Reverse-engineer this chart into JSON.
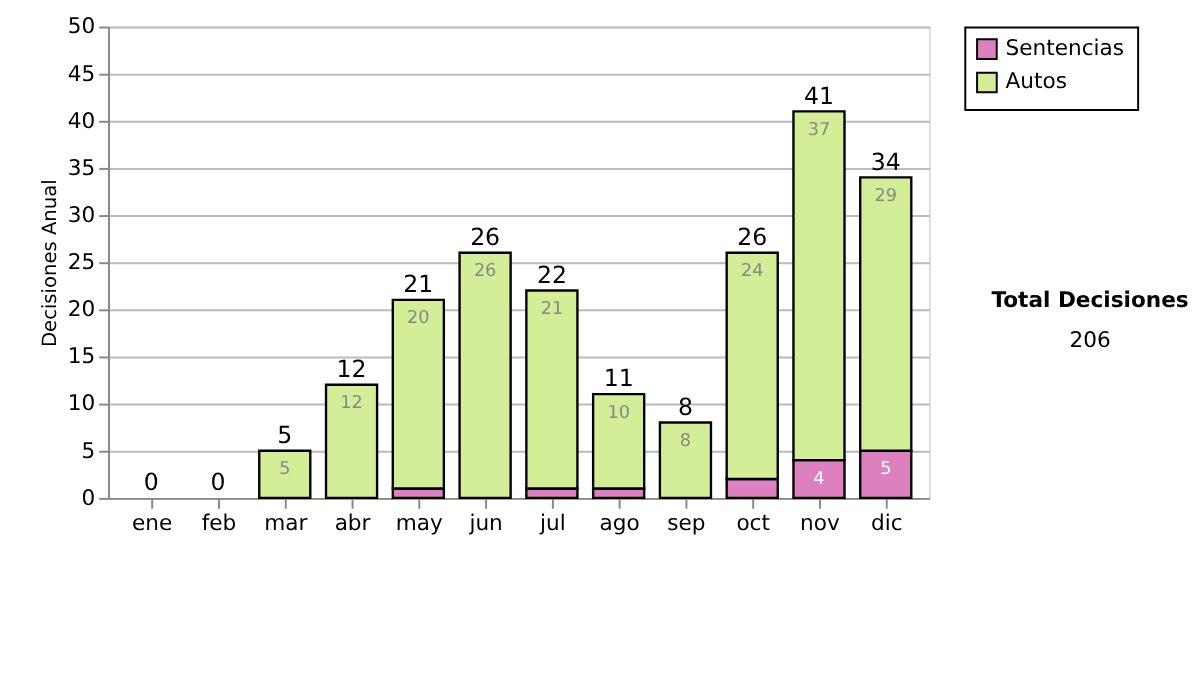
{
  "chart_data": {
    "type": "bar",
    "stacked": true,
    "ylabel": "Decisiones Anual",
    "categories": [
      "ene",
      "feb",
      "mar",
      "abr",
      "may",
      "jun",
      "jul",
      "ago",
      "sep",
      "oct",
      "nov",
      "dic"
    ],
    "series": [
      {
        "name": "Sentencias",
        "color": "#dd80c0",
        "values": [
          0,
          0,
          0,
          0,
          1,
          0,
          1,
          1,
          0,
          2,
          4,
          5
        ],
        "value_labels": [
          null,
          null,
          null,
          null,
          null,
          null,
          null,
          null,
          null,
          null,
          "4",
          "5"
        ]
      },
      {
        "name": "Autos",
        "color": "#d4ee98",
        "values": [
          0,
          0,
          5,
          12,
          20,
          26,
          21,
          10,
          8,
          24,
          37,
          29
        ],
        "value_labels": [
          null,
          null,
          "5",
          "12",
          "20",
          "26",
          "21",
          "10",
          "8",
          "24",
          "37",
          "29"
        ]
      }
    ],
    "totals": [
      "0",
      "0",
      "5",
      "12",
      "21",
      "26",
      "22",
      "11",
      "8",
      "26",
      "41",
      "34"
    ],
    "ylim": [
      0,
      50
    ],
    "yticks": [
      0,
      5,
      10,
      15,
      20,
      25,
      30,
      35,
      40,
      45,
      50
    ],
    "grid": "y",
    "legend": "right",
    "annotations": [
      "Total Decisiones",
      "206"
    ]
  }
}
